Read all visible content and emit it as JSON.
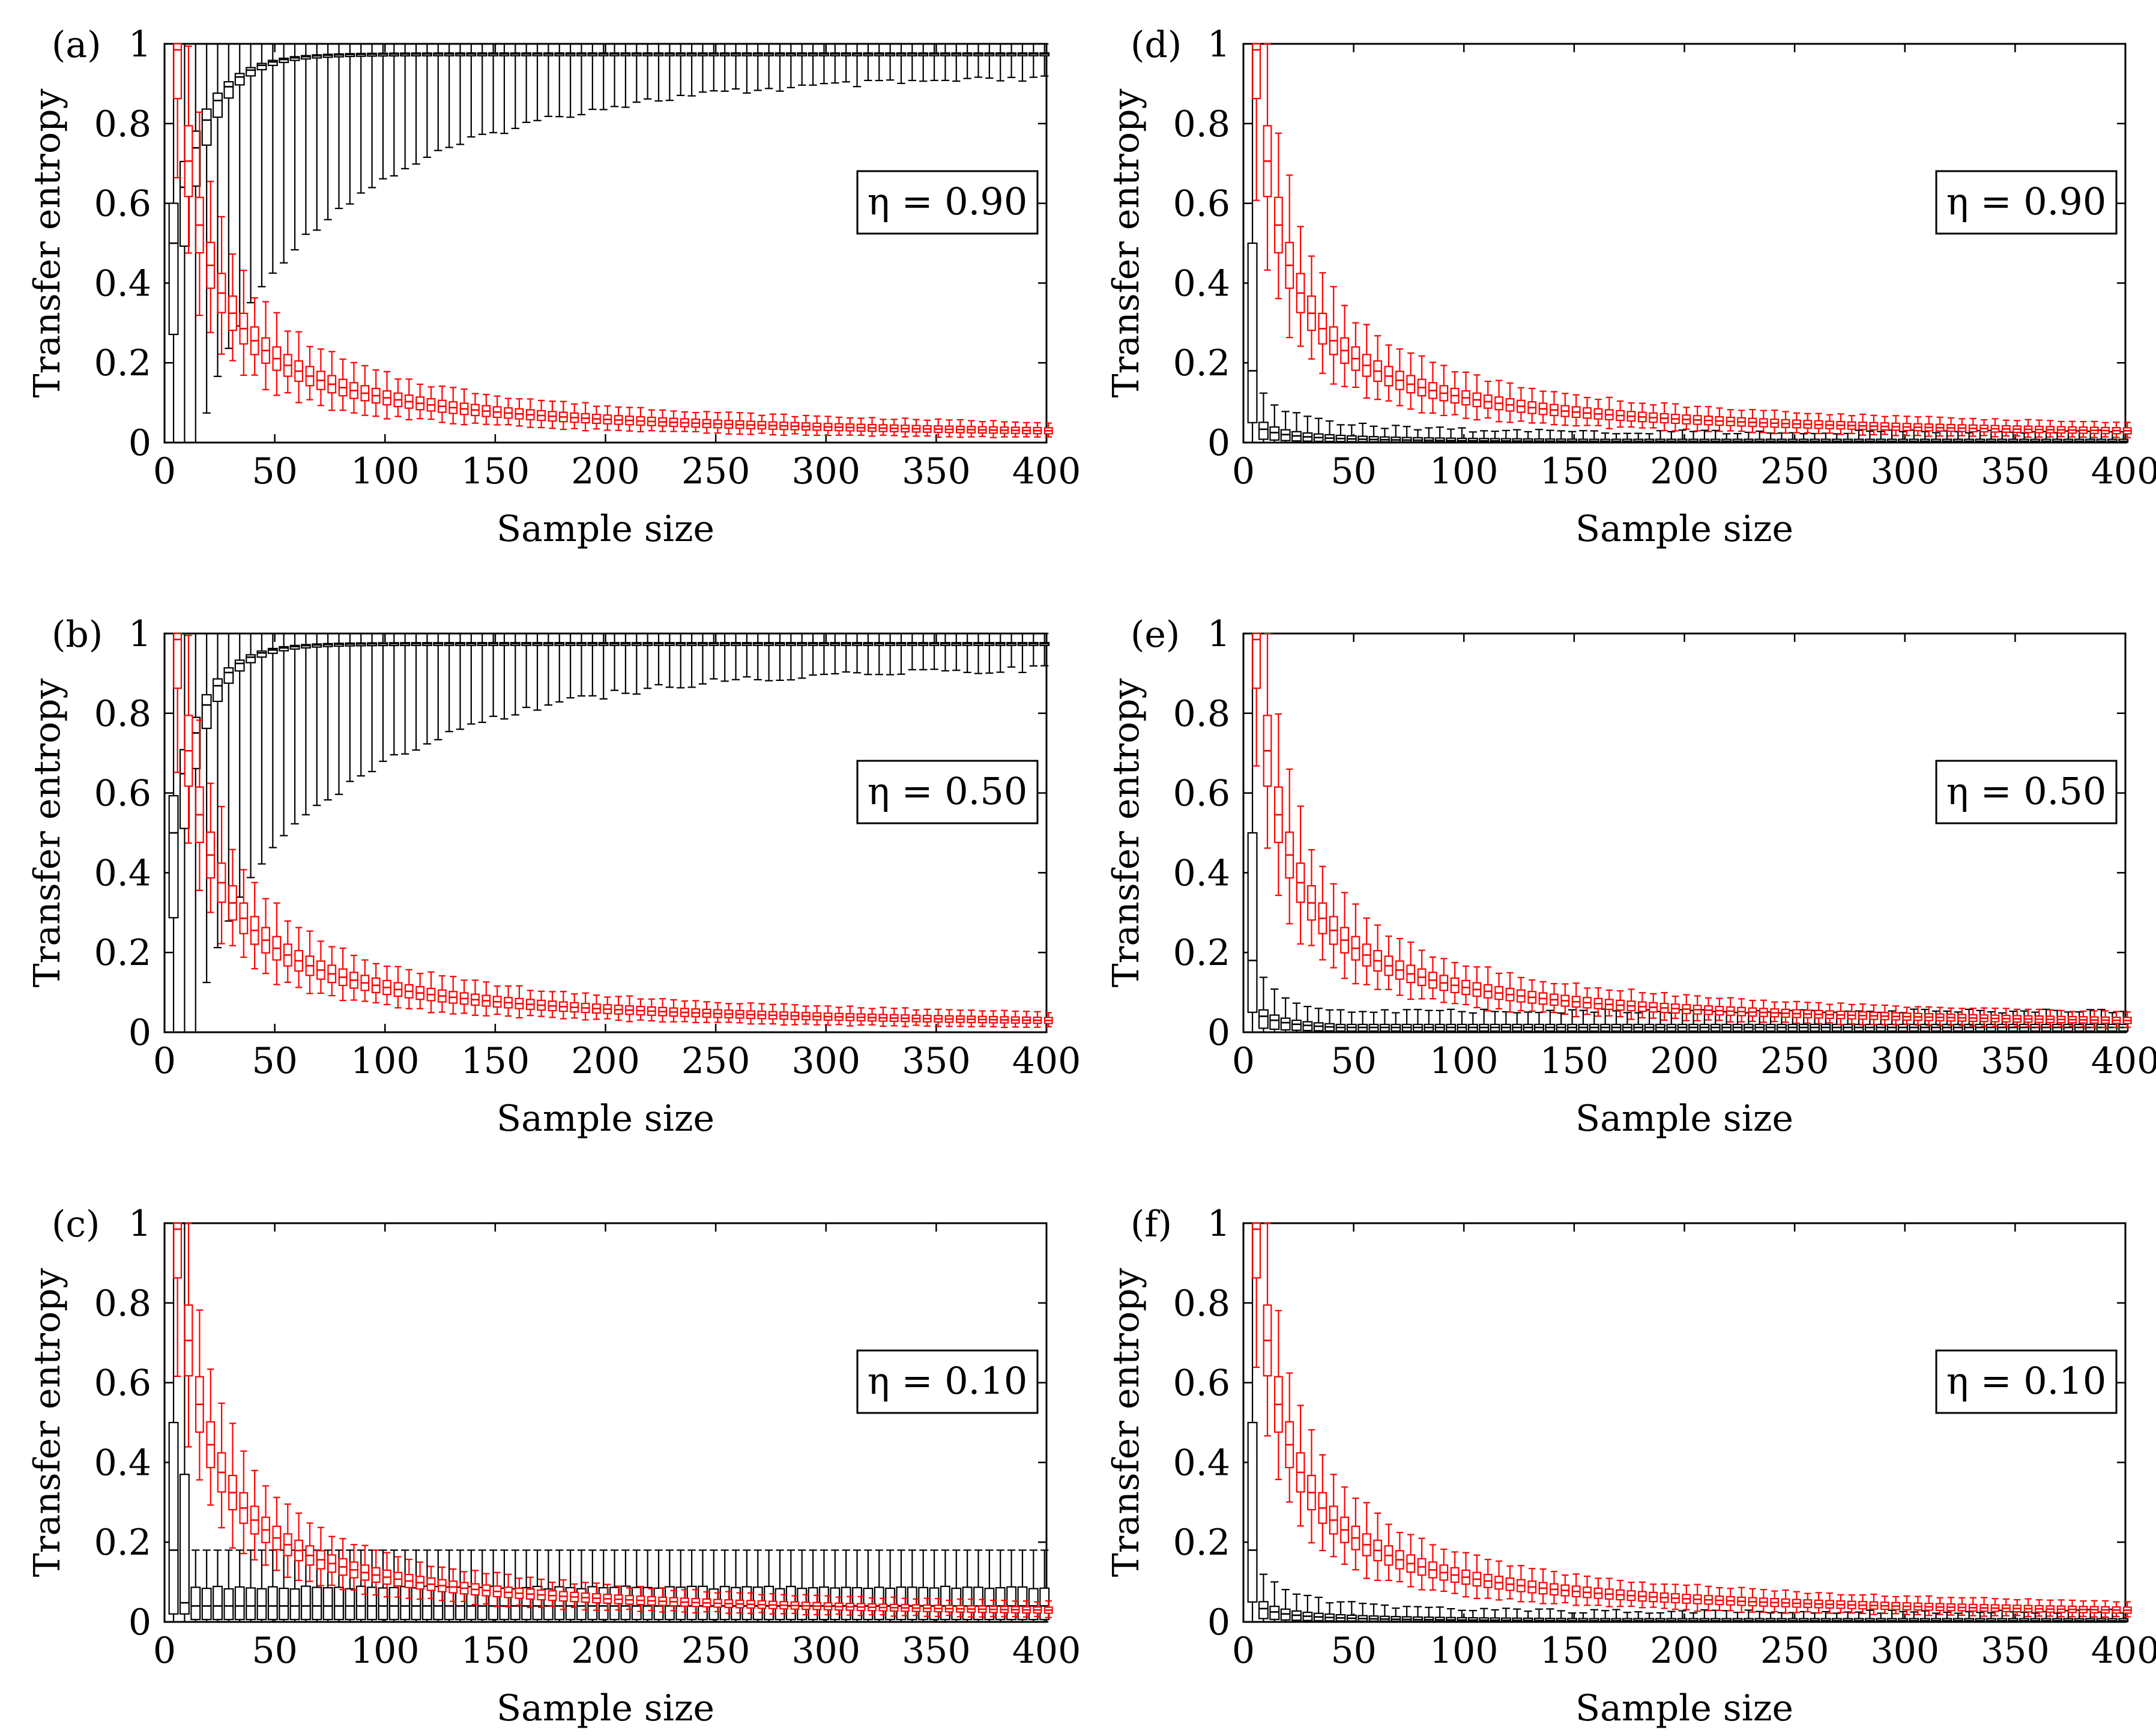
{
  "figure": {
    "panels": [
      "a",
      "b",
      "c",
      "d",
      "e",
      "f"
    ]
  },
  "colors": {
    "series_black": "#000000",
    "series_red": "#ff0000",
    "axis": "#000000",
    "background": "#ffffff"
  },
  "chart_data": [
    {
      "id": "a",
      "type": "box",
      "panel_label": "(a)",
      "annotation": "η = 0.90",
      "legend_position": "right-middle",
      "xlabel": "Sample size",
      "ylabel": "Transfer entropy",
      "xlim": [
        0,
        400
      ],
      "ylim": [
        0,
        1
      ],
      "xticks": [
        0,
        50,
        100,
        150,
        200,
        250,
        300,
        350,
        400
      ],
      "xtick_labels": [
        "0",
        "50",
        "100",
        "150",
        "200",
        "250",
        "300",
        "350",
        "400"
      ],
      "yticks": [
        0,
        0.2,
        0.4,
        0.6,
        0.8,
        1
      ],
      "ytick_labels": [
        "0",
        "0.2",
        "0.4",
        "0.6",
        "0.8",
        "1"
      ],
      "sample_sizes": {
        "start": 5,
        "step": 5,
        "count": 80
      },
      "series": [
        {
          "name": "black",
          "color": "#000000",
          "model": "rise",
          "median_start": 0.5,
          "median_end": 0.975,
          "rate": 0.07,
          "iqr_scale": 0.28,
          "whisker_scale": 0.9,
          "whisker_floor": 0.02
        },
        {
          "name": "red",
          "color": "#ff0000",
          "model": "decay",
          "k": 12,
          "end_floor": 0.0,
          "iqr_frac": 0.12,
          "whisker_frac": 0.45
        }
      ]
    },
    {
      "id": "b",
      "type": "box",
      "panel_label": "(b)",
      "annotation": "η = 0.50",
      "legend_position": "right-middle",
      "xlabel": "Sample size",
      "ylabel": "Transfer entropy",
      "xlim": [
        0,
        400
      ],
      "ylim": [
        0,
        1
      ],
      "xticks": [
        0,
        50,
        100,
        150,
        200,
        250,
        300,
        350,
        400
      ],
      "xtick_labels": [
        "0",
        "50",
        "100",
        "150",
        "200",
        "250",
        "300",
        "350",
        "400"
      ],
      "yticks": [
        0,
        0.2,
        0.4,
        0.6,
        0.8,
        1
      ],
      "ytick_labels": [
        "0",
        "0.2",
        "0.4",
        "0.6",
        "0.8",
        "1"
      ],
      "sample_sizes": {
        "start": 5,
        "step": 5,
        "count": 80
      },
      "series": [
        {
          "name": "black",
          "color": "#000000",
          "model": "rise",
          "median_start": 0.5,
          "median_end": 0.975,
          "rate": 0.075,
          "iqr_scale": 0.26,
          "whisker_scale": 0.85,
          "whisker_floor": 0.02
        },
        {
          "name": "red",
          "color": "#ff0000",
          "model": "decay",
          "k": 12,
          "end_floor": 0.0,
          "iqr_frac": 0.12,
          "whisker_frac": 0.45
        }
      ]
    },
    {
      "id": "c",
      "type": "box",
      "panel_label": "(c)",
      "annotation": "η = 0.10",
      "legend_position": "right-middle",
      "xlabel": "Sample size",
      "ylabel": "Transfer entropy",
      "xlim": [
        0,
        400
      ],
      "ylim": [
        0,
        1
      ],
      "xticks": [
        0,
        50,
        100,
        150,
        200,
        250,
        300,
        350,
        400
      ],
      "xtick_labels": [
        "0",
        "50",
        "100",
        "150",
        "200",
        "250",
        "300",
        "350",
        "400"
      ],
      "yticks": [
        0,
        0.2,
        0.4,
        0.6,
        0.8,
        1
      ],
      "ytick_labels": [
        "0",
        "0.2",
        "0.4",
        "0.6",
        "0.8",
        "1"
      ],
      "sample_sizes": {
        "start": 5,
        "step": 5,
        "count": 80
      },
      "series": [
        {
          "name": "black",
          "color": "#000000",
          "model": "lowflat",
          "k": 0.6,
          "floor": 0.04,
          "iqr_frac": 0.9,
          "whisker_top": 0.12
        },
        {
          "name": "red",
          "color": "#ff0000",
          "model": "decay",
          "k": 12,
          "end_floor": 0.0,
          "iqr_frac": 0.12,
          "whisker_frac": 0.45
        }
      ]
    },
    {
      "id": "d",
      "type": "box",
      "panel_label": "(d)",
      "annotation": "η = 0.90",
      "legend_position": "right-middle",
      "xlabel": "Sample size",
      "ylabel": "Transfer entropy",
      "xlim": [
        0,
        400
      ],
      "ylim": [
        0,
        1
      ],
      "xticks": [
        0,
        50,
        100,
        150,
        200,
        250,
        300,
        350,
        400
      ],
      "xtick_labels": [
        "0",
        "50",
        "100",
        "150",
        "200",
        "250",
        "300",
        "350",
        "400"
      ],
      "yticks": [
        0,
        0.2,
        0.4,
        0.6,
        0.8,
        1
      ],
      "ytick_labels": [
        "0",
        "0.2",
        "0.4",
        "0.6",
        "0.8",
        "1"
      ],
      "sample_sizes": {
        "start": 5,
        "step": 5,
        "count": 80
      },
      "series": [
        {
          "name": "black",
          "color": "#000000",
          "model": "zerodecay",
          "k": 0.5,
          "floor": 0.003,
          "iqr_frac": 1.4,
          "whisker_frac": 3.2
        },
        {
          "name": "red",
          "color": "#ff0000",
          "model": "decay",
          "k": 12,
          "end_floor": 0.0,
          "iqr_frac": 0.12,
          "whisker_frac": 0.45
        }
      ]
    },
    {
      "id": "e",
      "type": "box",
      "panel_label": "(e)",
      "annotation": "η = 0.50",
      "legend_position": "right-middle",
      "xlabel": "Sample size",
      "ylabel": "Transfer entropy",
      "xlim": [
        0,
        400
      ],
      "ylim": [
        0,
        1
      ],
      "xticks": [
        0,
        50,
        100,
        150,
        200,
        250,
        300,
        350,
        400
      ],
      "xtick_labels": [
        "0",
        "50",
        "100",
        "150",
        "200",
        "250",
        "300",
        "350",
        "400"
      ],
      "yticks": [
        0,
        0.2,
        0.4,
        0.6,
        0.8,
        1
      ],
      "ytick_labels": [
        "0",
        "0.2",
        "0.4",
        "0.6",
        "0.8",
        "1"
      ],
      "sample_sizes": {
        "start": 5,
        "step": 5,
        "count": 80
      },
      "series": [
        {
          "name": "black",
          "color": "#000000",
          "model": "zerodecay",
          "k": 0.6,
          "floor": 0.012,
          "iqr_frac": 1.3,
          "whisker_frac": 3.0
        },
        {
          "name": "red",
          "color": "#ff0000",
          "model": "decay",
          "k": 12,
          "end_floor": 0.0,
          "iqr_frac": 0.12,
          "whisker_frac": 0.45
        }
      ]
    },
    {
      "id": "f",
      "type": "box",
      "panel_label": "(f)",
      "annotation": "η = 0.10",
      "legend_position": "right-middle",
      "xlabel": "Sample size",
      "ylabel": "Transfer entropy",
      "xlim": [
        0,
        400
      ],
      "ylim": [
        0,
        1
      ],
      "xticks": [
        0,
        50,
        100,
        150,
        200,
        250,
        300,
        350,
        400
      ],
      "xtick_labels": [
        "0",
        "50",
        "100",
        "150",
        "200",
        "250",
        "300",
        "350",
        "400"
      ],
      "yticks": [
        0,
        0.2,
        0.4,
        0.6,
        0.8,
        1
      ],
      "ytick_labels": [
        "0",
        "0.2",
        "0.4",
        "0.6",
        "0.8",
        "1"
      ],
      "sample_sizes": {
        "start": 5,
        "step": 5,
        "count": 80
      },
      "series": [
        {
          "name": "black",
          "color": "#000000",
          "model": "zerodecay",
          "k": 0.5,
          "floor": 0.003,
          "iqr_frac": 1.4,
          "whisker_frac": 3.2
        },
        {
          "name": "red",
          "color": "#ff0000",
          "model": "decay",
          "k": 12,
          "end_floor": 0.0,
          "iqr_frac": 0.12,
          "whisker_frac": 0.45
        }
      ]
    }
  ]
}
